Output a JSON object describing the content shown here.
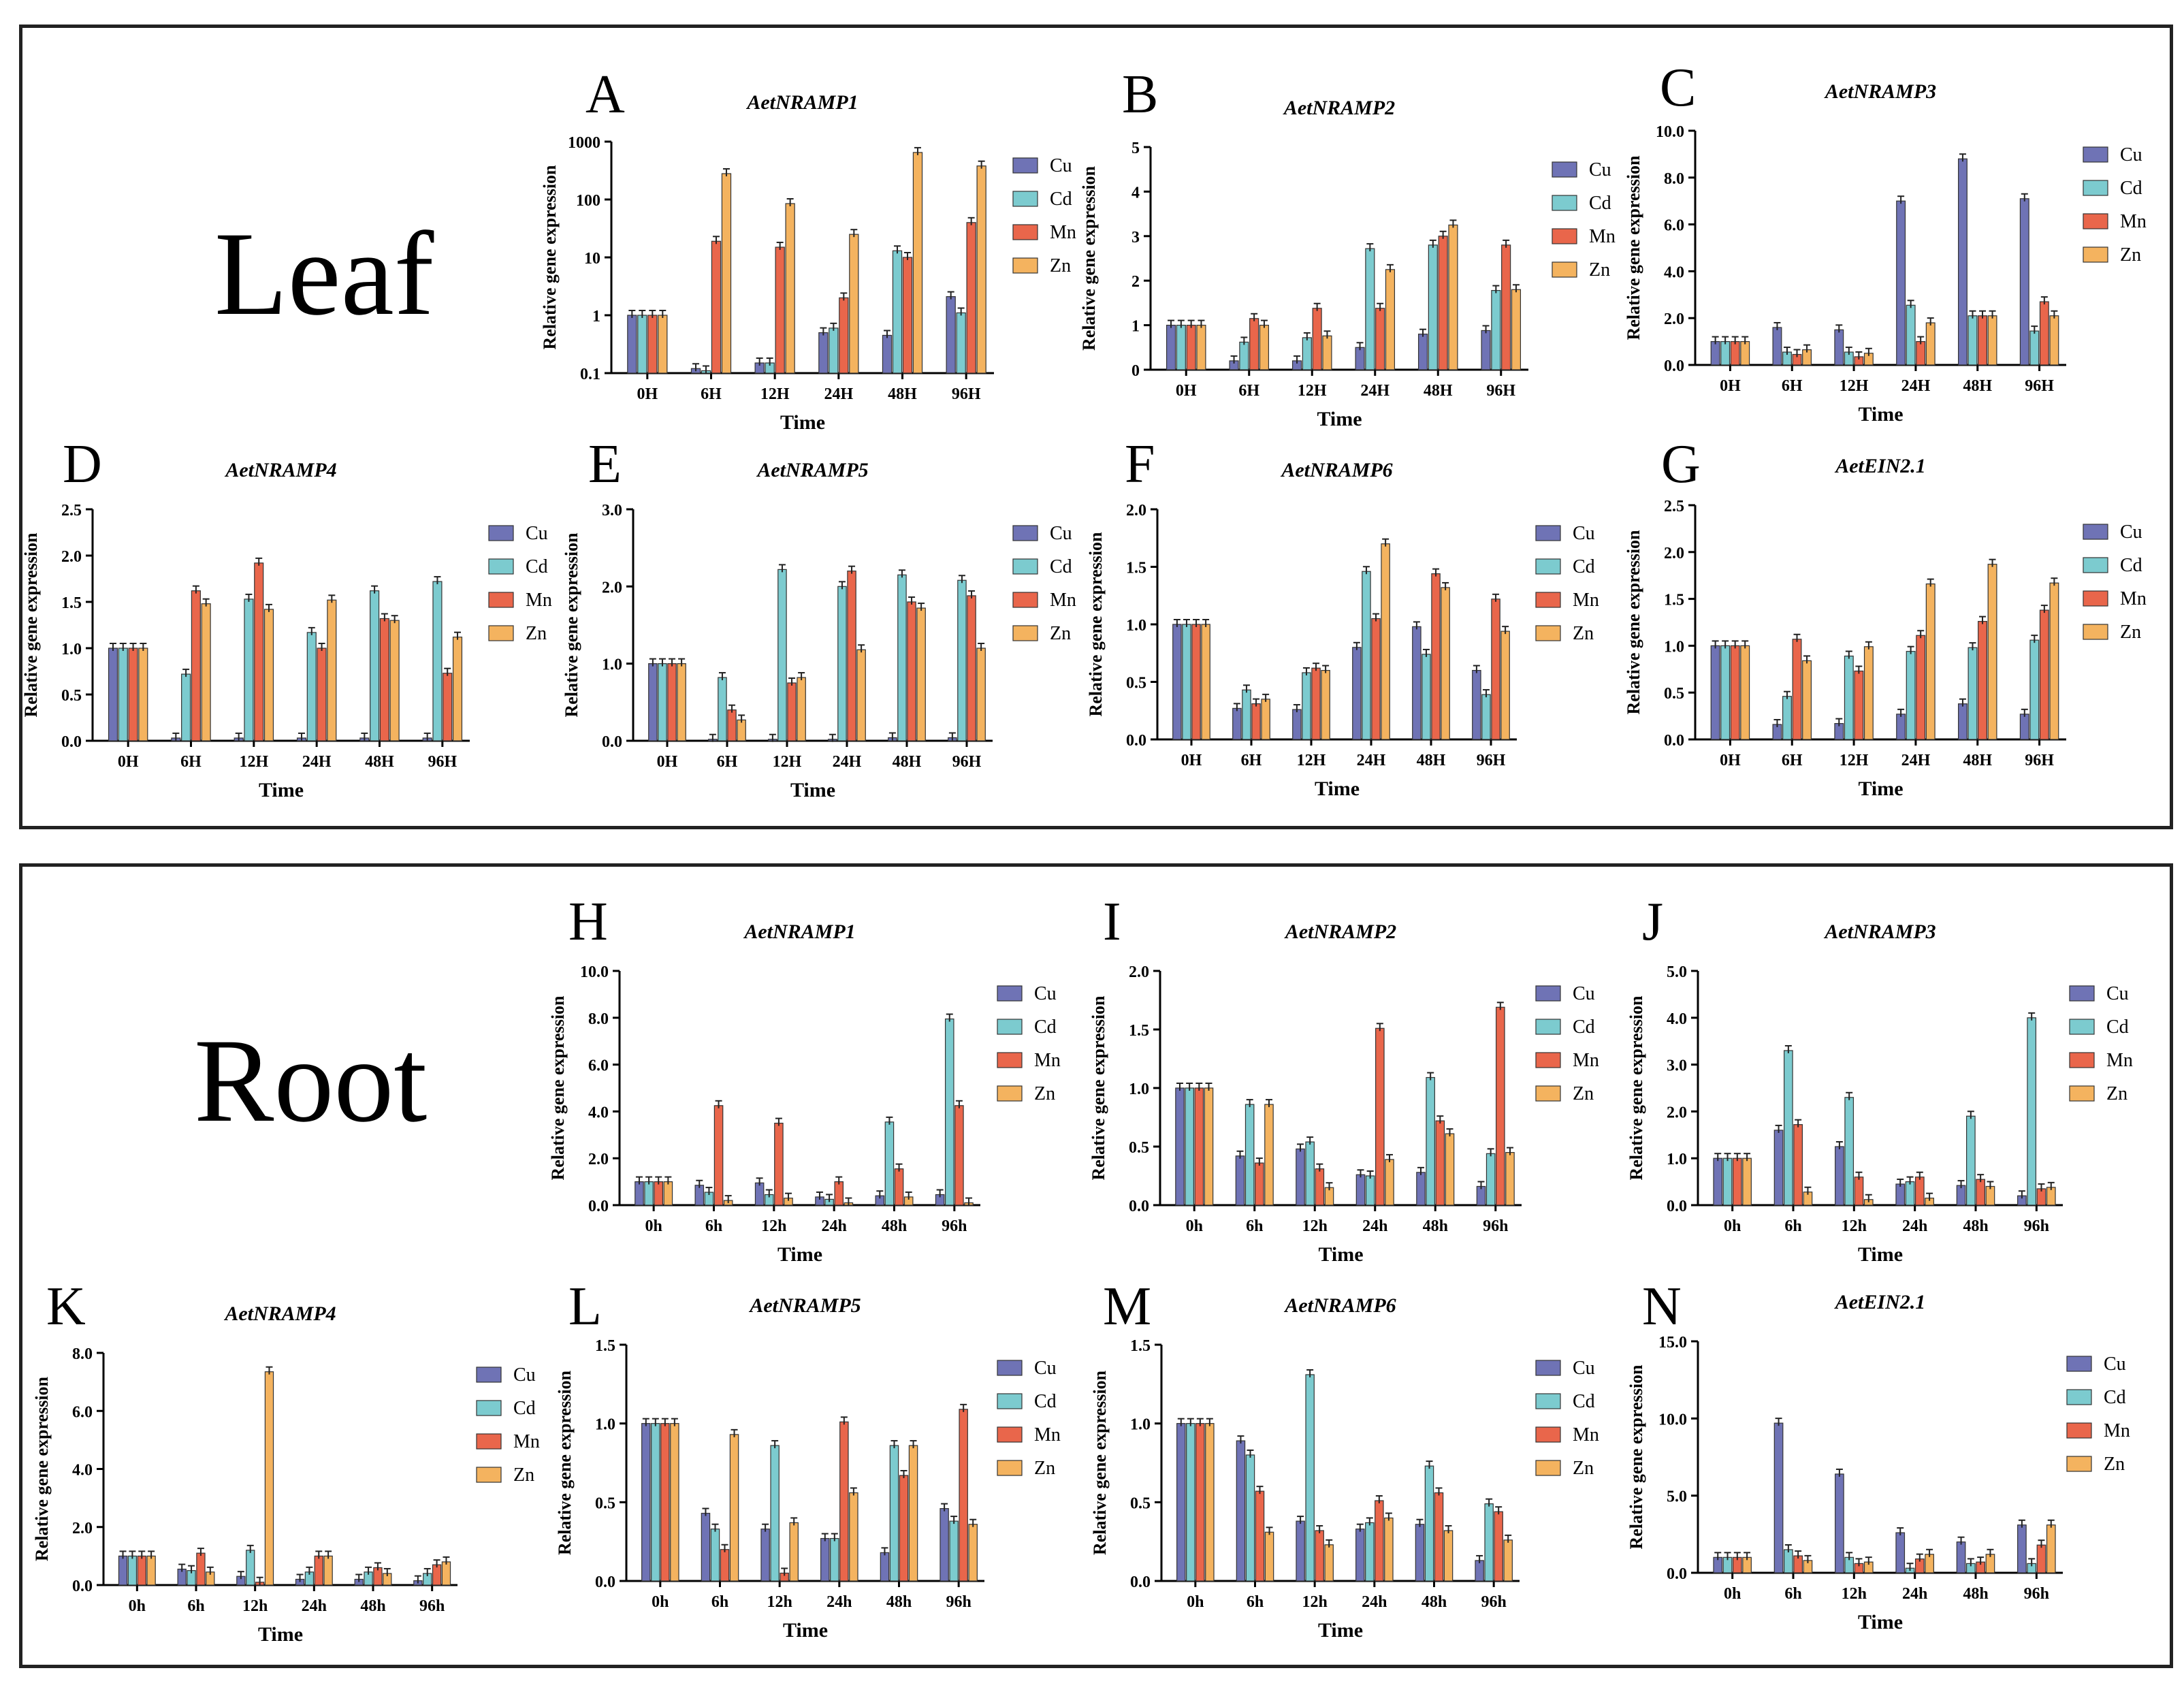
{
  "sections": {
    "leaf": {
      "label": "Leaf"
    },
    "root": {
      "label": "Root"
    }
  },
  "legend_series": [
    "Cu",
    "Cd",
    "Mn",
    "Zn"
  ],
  "colors": {
    "Cu": "#6f73b5",
    "Cd": "#7ccbcf",
    "Mn": "#e9664b",
    "Zn": "#f4b35f"
  },
  "chart_data": [
    {
      "panel": "A",
      "title": "AetNRAMP1",
      "type": "bar",
      "yscale": "log",
      "ylim": [
        0.1,
        1000
      ],
      "yticks": [
        "0.1",
        "1",
        "10",
        "100",
        "1000"
      ],
      "ylabel": "Relative gene expression",
      "xlabel": "Time",
      "categories": [
        "0H",
        "6H",
        "12H",
        "24H",
        "48H",
        "96H"
      ],
      "series": [
        {
          "name": "Cu",
          "values": [
            1.0,
            0.12,
            0.15,
            0.5,
            0.45,
            2.1
          ]
        },
        {
          "name": "Cd",
          "values": [
            1.0,
            0.11,
            0.15,
            0.6,
            13,
            1.1
          ]
        },
        {
          "name": "Mn",
          "values": [
            1.0,
            19,
            15,
            2.0,
            10,
            40
          ]
        },
        {
          "name": "Zn",
          "values": [
            1.0,
            280,
            85,
            25,
            650,
            380
          ]
        }
      ]
    },
    {
      "panel": "B",
      "title": "AetNRAMP2",
      "type": "bar",
      "ylim": [
        0,
        5
      ],
      "yticks": [
        "0",
        "1",
        "2",
        "3",
        "4",
        "5"
      ],
      "ylabel": "Relative gene expression",
      "xlabel": "Time",
      "categories": [
        "0H",
        "6H",
        "12H",
        "24H",
        "48H",
        "96H"
      ],
      "series": [
        {
          "name": "Cu",
          "values": [
            1.0,
            0.2,
            0.2,
            0.5,
            0.8,
            0.88
          ]
        },
        {
          "name": "Cd",
          "values": [
            1.0,
            0.62,
            0.72,
            2.72,
            2.8,
            1.78
          ]
        },
        {
          "name": "Mn",
          "values": [
            1.0,
            1.15,
            1.38,
            1.38,
            3.0,
            2.8
          ]
        },
        {
          "name": "Zn",
          "values": [
            1.0,
            1.0,
            0.76,
            2.25,
            3.25,
            1.8
          ]
        }
      ]
    },
    {
      "panel": "C",
      "title": "AetNRAMP3",
      "type": "bar",
      "ylim": [
        0,
        10
      ],
      "yticks": [
        "0.0",
        "2.0",
        "4.0",
        "6.0",
        "8.0",
        "10.0"
      ],
      "ylabel": "Relative gene expression",
      "xlabel": "Time",
      "categories": [
        "0H",
        "6H",
        "12H",
        "24H",
        "48H",
        "96H"
      ],
      "series": [
        {
          "name": "Cu",
          "values": [
            1.0,
            1.6,
            1.5,
            7.0,
            8.8,
            7.1
          ]
        },
        {
          "name": "Cd",
          "values": [
            1.0,
            0.55,
            0.55,
            2.55,
            2.1,
            1.45
          ]
        },
        {
          "name": "Mn",
          "values": [
            1.0,
            0.45,
            0.35,
            1.0,
            2.1,
            2.7
          ]
        },
        {
          "name": "Zn",
          "values": [
            1.0,
            0.65,
            0.5,
            1.8,
            2.1,
            2.1
          ]
        }
      ]
    },
    {
      "panel": "D",
      "title": "AetNRAMP4",
      "type": "bar",
      "ylim": [
        0,
        2.5
      ],
      "yticks": [
        "0.0",
        "0.5",
        "1.0",
        "1.5",
        "2.0",
        "2.5"
      ],
      "ylabel": "Relative gene expression",
      "xlabel": "Time",
      "categories": [
        "0H",
        "6H",
        "12H",
        "24H",
        "48H",
        "96H"
      ],
      "series": [
        {
          "name": "Cu",
          "values": [
            1.0,
            0.03,
            0.03,
            0.03,
            0.03,
            0.03
          ]
        },
        {
          "name": "Cd",
          "values": [
            1.0,
            0.72,
            1.53,
            1.17,
            1.62,
            1.72
          ]
        },
        {
          "name": "Mn",
          "values": [
            1.0,
            1.62,
            1.92,
            1.0,
            1.32,
            0.73
          ]
        },
        {
          "name": "Zn",
          "values": [
            1.0,
            1.48,
            1.42,
            1.52,
            1.3,
            1.12
          ]
        }
      ]
    },
    {
      "panel": "E",
      "title": "AetNRAMP5",
      "type": "bar",
      "ylim": [
        0,
        3
      ],
      "yticks": [
        "0.0",
        "1.0",
        "2.0",
        "3.0"
      ],
      "ylabel": "Relative gene expression",
      "xlabel": "Time",
      "categories": [
        "0H",
        "6H",
        "12H",
        "24H",
        "48H",
        "96H"
      ],
      "series": [
        {
          "name": "Cu",
          "values": [
            1.0,
            0.02,
            0.02,
            0.02,
            0.04,
            0.04
          ]
        },
        {
          "name": "Cd",
          "values": [
            1.0,
            0.82,
            2.22,
            2.0,
            2.15,
            2.08
          ]
        },
        {
          "name": "Mn",
          "values": [
            1.0,
            0.4,
            0.75,
            2.2,
            1.8,
            1.88
          ]
        },
        {
          "name": "Zn",
          "values": [
            1.0,
            0.27,
            0.82,
            1.18,
            1.72,
            1.2
          ]
        }
      ]
    },
    {
      "panel": "F",
      "title": "AetNRAMP6",
      "type": "bar",
      "ylim": [
        0,
        2
      ],
      "yticks": [
        "0.0",
        "0.5",
        "1.0",
        "1.5",
        "2.0"
      ],
      "ylabel": "Relative gene expression",
      "xlabel": "Time",
      "categories": [
        "0H",
        "6H",
        "12H",
        "24H",
        "48H",
        "96H"
      ],
      "series": [
        {
          "name": "Cu",
          "values": [
            1.0,
            0.27,
            0.26,
            0.8,
            0.98,
            0.6
          ]
        },
        {
          "name": "Cd",
          "values": [
            1.0,
            0.43,
            0.58,
            1.46,
            0.74,
            0.39
          ]
        },
        {
          "name": "Mn",
          "values": [
            1.0,
            0.31,
            0.62,
            1.05,
            1.44,
            1.22
          ]
        },
        {
          "name": "Zn",
          "values": [
            1.0,
            0.35,
            0.6,
            1.7,
            1.32,
            0.94
          ]
        }
      ]
    },
    {
      "panel": "G",
      "title": "AetEIN2.1",
      "type": "bar",
      "ylim": [
        0,
        2.5
      ],
      "yticks": [
        "0.0",
        "0.5",
        "1.0",
        "1.5",
        "2.0",
        "2.5"
      ],
      "ylabel": "Relative gene expression",
      "xlabel": "Time",
      "categories": [
        "0H",
        "6H",
        "12H",
        "24H",
        "48H",
        "96H"
      ],
      "series": [
        {
          "name": "Cu",
          "values": [
            1.0,
            0.16,
            0.17,
            0.27,
            0.38,
            0.27
          ]
        },
        {
          "name": "Cd",
          "values": [
            1.0,
            0.46,
            0.89,
            0.94,
            0.98,
            1.06
          ]
        },
        {
          "name": "Mn",
          "values": [
            1.0,
            1.07,
            0.73,
            1.11,
            1.26,
            1.38
          ]
        },
        {
          "name": "Zn",
          "values": [
            1.0,
            0.84,
            0.99,
            1.66,
            1.87,
            1.67
          ]
        }
      ]
    },
    {
      "panel": "H",
      "title": "AetNRAMP1",
      "type": "bar",
      "ylim": [
        0,
        10
      ],
      "yticks": [
        "0.0",
        "2.0",
        "4.0",
        "6.0",
        "8.0",
        "10.0"
      ],
      "ylabel": "Relative gene expression",
      "xlabel": "Time",
      "categories": [
        "0h",
        "6h",
        "12h",
        "24h",
        "48h",
        "96h"
      ],
      "series": [
        {
          "name": "Cu",
          "values": [
            1.0,
            0.85,
            0.95,
            0.35,
            0.4,
            0.45
          ]
        },
        {
          "name": "Cd",
          "values": [
            1.0,
            0.55,
            0.45,
            0.25,
            3.55,
            7.95
          ]
        },
        {
          "name": "Mn",
          "values": [
            1.0,
            4.25,
            3.5,
            1.0,
            1.55,
            4.25
          ]
        },
        {
          "name": "Zn",
          "values": [
            1.0,
            0.2,
            0.3,
            0.1,
            0.35,
            0.1
          ]
        }
      ]
    },
    {
      "panel": "I",
      "title": "AetNRAMP2",
      "type": "bar",
      "ylim": [
        0,
        2
      ],
      "yticks": [
        "0.0",
        "0.5",
        "1.0",
        "1.5",
        "2.0"
      ],
      "ylabel": "Relative gene expression",
      "xlabel": "Time",
      "categories": [
        "0h",
        "6h",
        "12h",
        "24h",
        "48h",
        "96h"
      ],
      "series": [
        {
          "name": "Cu",
          "values": [
            1.0,
            0.42,
            0.48,
            0.26,
            0.28,
            0.16
          ]
        },
        {
          "name": "Cd",
          "values": [
            1.0,
            0.86,
            0.54,
            0.25,
            1.09,
            0.44
          ]
        },
        {
          "name": "Mn",
          "values": [
            1.0,
            0.36,
            0.31,
            1.51,
            0.72,
            1.69
          ]
        },
        {
          "name": "Zn",
          "values": [
            1.0,
            0.86,
            0.15,
            0.39,
            0.61,
            0.45
          ]
        }
      ]
    },
    {
      "panel": "J",
      "title": "AetNRAMP3",
      "type": "bar",
      "ylim": [
        0,
        5
      ],
      "yticks": [
        "0.0",
        "1.0",
        "2.0",
        "3.0",
        "4.0",
        "5.0"
      ],
      "ylabel": "Relative gene expression",
      "xlabel": "Time",
      "categories": [
        "0h",
        "6h",
        "12h",
        "24h",
        "48h",
        "96h"
      ],
      "series": [
        {
          "name": "Cu",
          "values": [
            1.0,
            1.6,
            1.25,
            0.45,
            0.42,
            0.2
          ]
        },
        {
          "name": "Cd",
          "values": [
            1.0,
            3.3,
            2.3,
            0.5,
            1.9,
            4.0
          ]
        },
        {
          "name": "Mn",
          "values": [
            1.0,
            1.72,
            0.6,
            0.6,
            0.55,
            0.35
          ]
        },
        {
          "name": "Zn",
          "values": [
            1.0,
            0.28,
            0.12,
            0.15,
            0.4,
            0.38
          ]
        }
      ]
    },
    {
      "panel": "K",
      "title": "AetNRAMP4",
      "type": "bar",
      "ylim": [
        0,
        8
      ],
      "yticks": [
        "0.0",
        "2.0",
        "4.0",
        "6.0",
        "8.0"
      ],
      "ylabel": "Relative gene expression",
      "xlabel": "Time",
      "categories": [
        "0h",
        "6h",
        "12h",
        "24h",
        "48h",
        "96h"
      ],
      "series": [
        {
          "name": "Cu",
          "values": [
            1.0,
            0.55,
            0.3,
            0.2,
            0.2,
            0.15
          ]
        },
        {
          "name": "Cd",
          "values": [
            1.0,
            0.5,
            1.2,
            0.45,
            0.45,
            0.4
          ]
        },
        {
          "name": "Mn",
          "values": [
            1.0,
            1.1,
            0.1,
            1.0,
            0.6,
            0.7
          ]
        },
        {
          "name": "Zn",
          "values": [
            1.0,
            0.45,
            7.35,
            1.0,
            0.4,
            0.8
          ]
        }
      ]
    },
    {
      "panel": "L",
      "title": "AetNRAMP5",
      "type": "bar",
      "ylim": [
        0,
        1.5
      ],
      "yticks": [
        "0.0",
        "0.5",
        "1.0",
        "1.5"
      ],
      "ylabel": "Relative gene expression",
      "xlabel": "Time",
      "categories": [
        "0h",
        "6h",
        "12h",
        "24h",
        "48h",
        "96h"
      ],
      "series": [
        {
          "name": "Cu",
          "values": [
            1.0,
            0.43,
            0.33,
            0.27,
            0.18,
            0.46
          ]
        },
        {
          "name": "Cd",
          "values": [
            1.0,
            0.33,
            0.86,
            0.27,
            0.86,
            0.38
          ]
        },
        {
          "name": "Mn",
          "values": [
            1.0,
            0.2,
            0.05,
            1.01,
            0.67,
            1.09
          ]
        },
        {
          "name": "Zn",
          "values": [
            1.0,
            0.93,
            0.37,
            0.56,
            0.86,
            0.36
          ]
        }
      ]
    },
    {
      "panel": "M",
      "title": "AetNRAMP6",
      "type": "bar",
      "ylim": [
        0,
        1.5
      ],
      "yticks": [
        "0.0",
        "0.5",
        "1.0",
        "1.5"
      ],
      "ylabel": "Relative gene expression",
      "xlabel": "Time",
      "categories": [
        "0h",
        "6h",
        "12h",
        "24h",
        "48h",
        "96h"
      ],
      "series": [
        {
          "name": "Cu",
          "values": [
            1.0,
            0.89,
            0.38,
            0.33,
            0.36,
            0.13
          ]
        },
        {
          "name": "Cd",
          "values": [
            1.0,
            0.8,
            1.31,
            0.37,
            0.73,
            0.49
          ]
        },
        {
          "name": "Mn",
          "values": [
            1.0,
            0.57,
            0.32,
            0.51,
            0.56,
            0.44
          ]
        },
        {
          "name": "Zn",
          "values": [
            1.0,
            0.31,
            0.23,
            0.4,
            0.32,
            0.26
          ]
        }
      ]
    },
    {
      "panel": "N",
      "title": "AetEIN2.1",
      "type": "bar",
      "ylim": [
        0,
        15
      ],
      "yticks": [
        "0.0",
        "5.0",
        "10.0",
        "15.0"
      ],
      "ylabel": "Relative gene expression",
      "xlabel": "Time",
      "categories": [
        "0h",
        "6h",
        "12h",
        "24h",
        "48h",
        "96h"
      ],
      "series": [
        {
          "name": "Cu",
          "values": [
            1.0,
            9.7,
            6.4,
            2.6,
            2.0,
            3.1
          ]
        },
        {
          "name": "Cd",
          "values": [
            1.0,
            1.5,
            1.0,
            0.3,
            0.6,
            0.6
          ]
        },
        {
          "name": "Mn",
          "values": [
            1.0,
            1.1,
            0.6,
            0.9,
            0.7,
            1.8
          ]
        },
        {
          "name": "Zn",
          "values": [
            1.0,
            0.8,
            0.7,
            1.2,
            1.2,
            3.1
          ]
        }
      ]
    }
  ]
}
